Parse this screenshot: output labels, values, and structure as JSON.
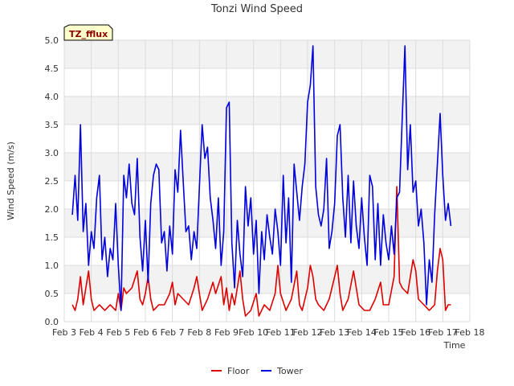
{
  "chart_data": {
    "type": "line",
    "title": "Tonzi Wind Speed",
    "xlabel": "Time",
    "ylabel": "Wind Speed (m/s)",
    "badge": "TZ_fflux",
    "ylim": [
      0,
      5
    ],
    "yticks": [
      "0.0",
      "0.5",
      "1.0",
      "1.5",
      "2.0",
      "2.5",
      "3.0",
      "3.5",
      "4.0",
      "4.5",
      "5.0"
    ],
    "xlim": [
      3,
      18
    ],
    "xticks": [
      {
        "pos": 3,
        "label": "Feb 3"
      },
      {
        "pos": 4,
        "label": "Feb 4"
      },
      {
        "pos": 5,
        "label": "Feb 5"
      },
      {
        "pos": 6,
        "label": "Feb 6"
      },
      {
        "pos": 7,
        "label": "Feb 7"
      },
      {
        "pos": 8,
        "label": "Feb 8"
      },
      {
        "pos": 9,
        "label": "Feb 9"
      },
      {
        "pos": 10,
        "label": "Feb 10"
      },
      {
        "pos": 11,
        "label": "Feb 11"
      },
      {
        "pos": 12,
        "label": "Feb 12"
      },
      {
        "pos": 13,
        "label": "Feb 13"
      },
      {
        "pos": 14,
        "label": "Feb 14"
      },
      {
        "pos": 15,
        "label": "Feb 15"
      },
      {
        "pos": 16,
        "label": "Feb 16"
      },
      {
        "pos": 17,
        "label": "Feb 17"
      },
      {
        "pos": 18,
        "label": "Feb 18"
      }
    ],
    "legend_position": "bottom-center",
    "series": [
      {
        "name": "Floor",
        "color": "#dd0000",
        "points": [
          [
            3.3,
            0.3
          ],
          [
            3.4,
            0.2
          ],
          [
            3.5,
            0.4
          ],
          [
            3.6,
            0.8
          ],
          [
            3.7,
            0.3
          ],
          [
            3.8,
            0.6
          ],
          [
            3.9,
            0.9
          ],
          [
            4.0,
            0.4
          ],
          [
            4.1,
            0.2
          ],
          [
            4.3,
            0.3
          ],
          [
            4.5,
            0.2
          ],
          [
            4.7,
            0.3
          ],
          [
            4.9,
            0.2
          ],
          [
            5.0,
            0.5
          ],
          [
            5.1,
            0.2
          ],
          [
            5.2,
            0.6
          ],
          [
            5.3,
            0.5
          ],
          [
            5.5,
            0.6
          ],
          [
            5.7,
            0.9
          ],
          [
            5.8,
            0.4
          ],
          [
            5.9,
            0.3
          ],
          [
            6.0,
            0.5
          ],
          [
            6.1,
            0.8
          ],
          [
            6.2,
            0.4
          ],
          [
            6.3,
            0.2
          ],
          [
            6.5,
            0.3
          ],
          [
            6.7,
            0.3
          ],
          [
            6.9,
            0.5
          ],
          [
            7.0,
            0.7
          ],
          [
            7.1,
            0.3
          ],
          [
            7.2,
            0.5
          ],
          [
            7.4,
            0.4
          ],
          [
            7.6,
            0.3
          ],
          [
            7.8,
            0.6
          ],
          [
            7.9,
            0.8
          ],
          [
            8.0,
            0.5
          ],
          [
            8.1,
            0.2
          ],
          [
            8.3,
            0.4
          ],
          [
            8.5,
            0.7
          ],
          [
            8.6,
            0.5
          ],
          [
            8.8,
            0.8
          ],
          [
            8.9,
            0.3
          ],
          [
            9.0,
            0.6
          ],
          [
            9.1,
            0.2
          ],
          [
            9.2,
            0.5
          ],
          [
            9.3,
            0.3
          ],
          [
            9.5,
            0.9
          ],
          [
            9.6,
            0.4
          ],
          [
            9.7,
            0.1
          ],
          [
            9.9,
            0.2
          ],
          [
            10.1,
            0.5
          ],
          [
            10.2,
            0.1
          ],
          [
            10.4,
            0.3
          ],
          [
            10.6,
            0.2
          ],
          [
            10.8,
            0.5
          ],
          [
            10.9,
            1.0
          ],
          [
            11.0,
            0.5
          ],
          [
            11.2,
            0.2
          ],
          [
            11.4,
            0.4
          ],
          [
            11.6,
            0.9
          ],
          [
            11.7,
            0.3
          ],
          [
            11.8,
            0.2
          ],
          [
            12.0,
            0.6
          ],
          [
            12.1,
            1.0
          ],
          [
            12.2,
            0.8
          ],
          [
            12.3,
            0.4
          ],
          [
            12.4,
            0.3
          ],
          [
            12.6,
            0.2
          ],
          [
            12.8,
            0.4
          ],
          [
            13.0,
            0.8
          ],
          [
            13.1,
            1.0
          ],
          [
            13.2,
            0.5
          ],
          [
            13.3,
            0.2
          ],
          [
            13.5,
            0.4
          ],
          [
            13.7,
            0.9
          ],
          [
            13.8,
            0.6
          ],
          [
            13.9,
            0.3
          ],
          [
            14.1,
            0.2
          ],
          [
            14.3,
            0.2
          ],
          [
            14.5,
            0.4
          ],
          [
            14.7,
            0.7
          ],
          [
            14.8,
            0.3
          ],
          [
            15.0,
            0.3
          ],
          [
            15.2,
            0.8
          ],
          [
            15.3,
            2.4
          ],
          [
            15.4,
            0.7
          ],
          [
            15.5,
            0.6
          ],
          [
            15.7,
            0.5
          ],
          [
            15.9,
            1.1
          ],
          [
            16.0,
            0.9
          ],
          [
            16.1,
            0.4
          ],
          [
            16.3,
            0.3
          ],
          [
            16.5,
            0.2
          ],
          [
            16.7,
            0.3
          ],
          [
            16.8,
            0.9
          ],
          [
            16.9,
            1.3
          ],
          [
            17.0,
            1.1
          ],
          [
            17.1,
            0.2
          ],
          [
            17.2,
            0.3
          ],
          [
            17.3,
            0.3
          ]
        ]
      },
      {
        "name": "Tower",
        "color": "#0000dd",
        "points": [
          [
            3.3,
            1.9
          ],
          [
            3.4,
            2.6
          ],
          [
            3.5,
            1.8
          ],
          [
            3.6,
            3.5
          ],
          [
            3.7,
            1.6
          ],
          [
            3.8,
            2.1
          ],
          [
            3.9,
            1.0
          ],
          [
            4.0,
            1.6
          ],
          [
            4.1,
            1.3
          ],
          [
            4.2,
            2.2
          ],
          [
            4.3,
            2.6
          ],
          [
            4.4,
            1.1
          ],
          [
            4.5,
            1.5
          ],
          [
            4.6,
            0.8
          ],
          [
            4.7,
            1.3
          ],
          [
            4.8,
            1.1
          ],
          [
            4.9,
            2.1
          ],
          [
            5.0,
            1.0
          ],
          [
            5.1,
            0.2
          ],
          [
            5.2,
            2.6
          ],
          [
            5.3,
            2.2
          ],
          [
            5.4,
            2.8
          ],
          [
            5.5,
            2.1
          ],
          [
            5.6,
            1.9
          ],
          [
            5.7,
            2.9
          ],
          [
            5.8,
            1.5
          ],
          [
            5.9,
            0.9
          ],
          [
            6.0,
            1.8
          ],
          [
            6.1,
            0.7
          ],
          [
            6.2,
            2.1
          ],
          [
            6.3,
            2.6
          ],
          [
            6.4,
            2.8
          ],
          [
            6.5,
            2.7
          ],
          [
            6.6,
            1.4
          ],
          [
            6.7,
            1.6
          ],
          [
            6.8,
            0.9
          ],
          [
            6.9,
            1.7
          ],
          [
            7.0,
            1.2
          ],
          [
            7.1,
            2.7
          ],
          [
            7.2,
            2.3
          ],
          [
            7.3,
            3.4
          ],
          [
            7.4,
            2.5
          ],
          [
            7.5,
            1.6
          ],
          [
            7.6,
            1.7
          ],
          [
            7.7,
            1.1
          ],
          [
            7.8,
            1.6
          ],
          [
            7.9,
            1.3
          ],
          [
            8.0,
            2.4
          ],
          [
            8.1,
            3.5
          ],
          [
            8.2,
            2.9
          ],
          [
            8.3,
            3.1
          ],
          [
            8.4,
            2.2
          ],
          [
            8.5,
            1.8
          ],
          [
            8.6,
            1.3
          ],
          [
            8.7,
            2.2
          ],
          [
            8.8,
            1.0
          ],
          [
            8.9,
            1.6
          ],
          [
            9.0,
            3.8
          ],
          [
            9.1,
            3.9
          ],
          [
            9.2,
            1.4
          ],
          [
            9.3,
            0.6
          ],
          [
            9.4,
            1.8
          ],
          [
            9.5,
            1.2
          ],
          [
            9.6,
            0.8
          ],
          [
            9.7,
            2.4
          ],
          [
            9.8,
            1.7
          ],
          [
            9.9,
            2.2
          ],
          [
            10.0,
            1.2
          ],
          [
            10.1,
            1.8
          ],
          [
            10.2,
            0.5
          ],
          [
            10.3,
            1.6
          ],
          [
            10.4,
            1.1
          ],
          [
            10.5,
            1.9
          ],
          [
            10.6,
            1.5
          ],
          [
            10.7,
            1.2
          ],
          [
            10.8,
            2.0
          ],
          [
            10.9,
            1.6
          ],
          [
            11.0,
            1.0
          ],
          [
            11.1,
            2.6
          ],
          [
            11.2,
            1.4
          ],
          [
            11.3,
            2.2
          ],
          [
            11.4,
            0.7
          ],
          [
            11.5,
            2.8
          ],
          [
            11.6,
            2.3
          ],
          [
            11.7,
            1.8
          ],
          [
            11.8,
            2.4
          ],
          [
            11.9,
            2.8
          ],
          [
            12.0,
            3.9
          ],
          [
            12.1,
            4.2
          ],
          [
            12.2,
            4.9
          ],
          [
            12.3,
            2.4
          ],
          [
            12.4,
            1.9
          ],
          [
            12.5,
            1.7
          ],
          [
            12.6,
            2.0
          ],
          [
            12.7,
            2.9
          ],
          [
            12.8,
            1.3
          ],
          [
            12.9,
            1.6
          ],
          [
            13.0,
            2.1
          ],
          [
            13.1,
            3.3
          ],
          [
            13.2,
            3.5
          ],
          [
            13.3,
            2.2
          ],
          [
            13.4,
            1.5
          ],
          [
            13.5,
            2.6
          ],
          [
            13.6,
            1.4
          ],
          [
            13.7,
            2.5
          ],
          [
            13.8,
            1.7
          ],
          [
            13.9,
            1.3
          ],
          [
            14.0,
            2.2
          ],
          [
            14.1,
            1.5
          ],
          [
            14.2,
            1.0
          ],
          [
            14.3,
            2.6
          ],
          [
            14.4,
            2.4
          ],
          [
            14.5,
            1.1
          ],
          [
            14.6,
            2.1
          ],
          [
            14.7,
            1.0
          ],
          [
            14.8,
            1.9
          ],
          [
            14.9,
            1.4
          ],
          [
            15.0,
            1.1
          ],
          [
            15.1,
            1.7
          ],
          [
            15.2,
            1.2
          ],
          [
            15.3,
            2.2
          ],
          [
            15.4,
            2.3
          ],
          [
            15.5,
            3.6
          ],
          [
            15.6,
            4.9
          ],
          [
            15.7,
            2.7
          ],
          [
            15.8,
            3.5
          ],
          [
            15.9,
            2.3
          ],
          [
            16.0,
            2.5
          ],
          [
            16.1,
            1.7
          ],
          [
            16.2,
            2.0
          ],
          [
            16.3,
            1.4
          ],
          [
            16.4,
            0.3
          ],
          [
            16.5,
            1.1
          ],
          [
            16.6,
            0.7
          ],
          [
            16.7,
            1.9
          ],
          [
            16.8,
            2.8
          ],
          [
            16.9,
            3.7
          ],
          [
            17.0,
            2.6
          ],
          [
            17.1,
            1.8
          ],
          [
            17.2,
            2.1
          ],
          [
            17.3,
            1.7
          ]
        ]
      }
    ]
  }
}
